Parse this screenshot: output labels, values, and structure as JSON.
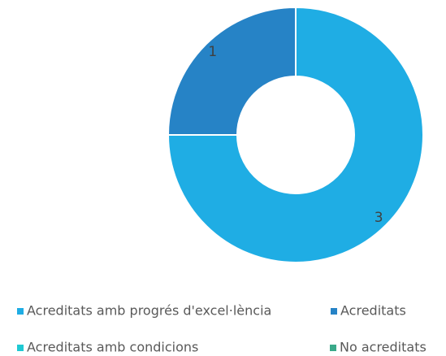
{
  "chart_data": {
    "type": "donut",
    "categories": [
      "Acreditats amb progrés d'excel·lència",
      "Acreditats",
      "Acreditats amb condicions",
      "No acreditats"
    ],
    "values": [
      3,
      1,
      0,
      0
    ],
    "colors": [
      "#1fade4",
      "#2683c6",
      "#1fc9d3",
      "#3aa989"
    ],
    "legend": "bottom"
  }
}
